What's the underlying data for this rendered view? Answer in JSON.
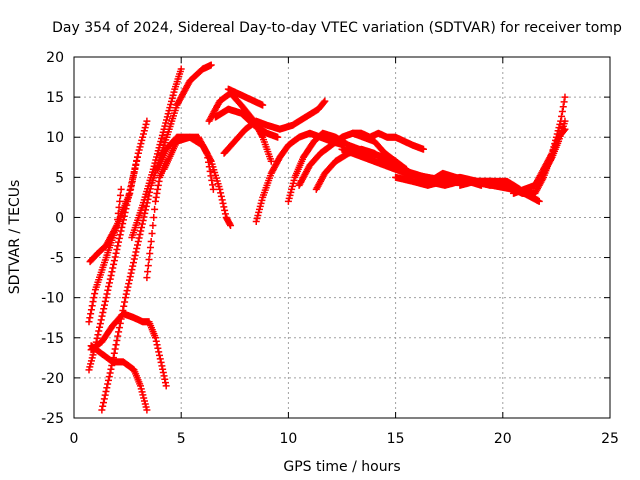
{
  "chart_data": {
    "type": "scatter",
    "title": "Day 354 of 2024, Sidereal Day-to-day VTEC variation (SDTVAR) for receiver tomp",
    "xlabel": "GPS time / hours",
    "ylabel": "SDTVAR / TECUs",
    "xlim": [
      0,
      25
    ],
    "ylim": [
      -25,
      20
    ],
    "xticks": [
      0,
      5,
      10,
      15,
      20,
      25
    ],
    "yticks": [
      -25,
      -20,
      -15,
      -10,
      -5,
      0,
      5,
      10,
      15,
      20
    ],
    "grid": true,
    "marker": "+",
    "color": "#ff0000",
    "series": [
      {
        "name": "s1",
        "x": [
          0.75,
          1.1,
          1.5,
          2.0,
          2.2
        ],
        "y": [
          -5.5,
          -4.5,
          -3.5,
          -1.0,
          3.5
        ]
      },
      {
        "name": "s2",
        "x": [
          0.7,
          1.0,
          1.5,
          2.0,
          2.6,
          3.0
        ],
        "y": [
          -13,
          -9.0,
          -5.0,
          -1.0,
          3.0,
          8.0
        ]
      },
      {
        "name": "s3",
        "x": [
          0.7,
          1.0,
          1.5,
          2.0,
          2.5,
          3.0,
          3.4
        ],
        "y": [
          -19,
          -16,
          -10,
          -4,
          2,
          8,
          12
        ]
      },
      {
        "name": "s4",
        "x": [
          1.3,
          1.8,
          2.4,
          3.0,
          3.6,
          4.2,
          4.8,
          5.4,
          6.0,
          6.4
        ],
        "y": [
          -24,
          -18,
          -10,
          -3,
          4,
          9,
          14,
          17,
          18.5,
          19
        ]
      },
      {
        "name": "s5",
        "x": [
          2.7,
          3.2,
          3.7,
          4.2,
          4.7,
          5.0
        ],
        "y": [
          -2.5,
          1.5,
          6.0,
          11.0,
          16.0,
          18.5
        ]
      },
      {
        "name": "s6",
        "x": [
          3.4,
          3.6,
          3.8,
          4.0,
          4.3
        ],
        "y": [
          -7.5,
          -3.0,
          2.0,
          5.0,
          7.0
        ]
      },
      {
        "name": "s7",
        "x": [
          0.8,
          1.3,
          1.8,
          2.3,
          2.8,
          3.2,
          3.5,
          3.8,
          4.1,
          4.3
        ],
        "y": [
          -16.5,
          -15.5,
          -13.5,
          -12.0,
          -12.5,
          -13.0,
          -13.0,
          -15.0,
          -18.5,
          -21.0
        ]
      },
      {
        "name": "s8",
        "x": [
          0.8,
          1.3,
          1.8,
          2.3,
          2.8,
          3.1,
          3.4
        ],
        "y": [
          -16.0,
          -17.0,
          -18.0,
          -18.0,
          -19.0,
          -21.0,
          -24.0
        ]
      },
      {
        "name": "s9",
        "x": [
          3.9,
          4.3,
          4.8,
          5.4,
          6.0,
          6.4,
          6.8,
          7.1,
          7.3
        ],
        "y": [
          6.0,
          8.5,
          10.0,
          10.0,
          9.0,
          7.0,
          3.5,
          0.0,
          -1.0
        ]
      },
      {
        "name": "s10",
        "x": [
          4.2,
          4.8,
          5.4,
          5.8,
          6.2,
          6.5
        ],
        "y": [
          6.0,
          9.5,
          10.0,
          10.0,
          8.0,
          3.5
        ]
      },
      {
        "name": "s11",
        "x": [
          6.3,
          6.8,
          7.3,
          7.8,
          8.4,
          8.8,
          9.2
        ],
        "y": [
          12.0,
          14.5,
          15.5,
          14.0,
          12.0,
          10.0,
          7.0
        ]
      },
      {
        "name": "s12",
        "x": [
          6.6,
          7.2,
          7.8,
          8.4,
          9.0,
          9.5
        ],
        "y": [
          12.5,
          13.5,
          13.0,
          11.5,
          10.5,
          10.0
        ]
      },
      {
        "name": "s13",
        "x": [
          7.2,
          7.6,
          8.0,
          8.4,
          8.8
        ],
        "y": [
          16.0,
          15.5,
          15.0,
          14.5,
          14.0
        ]
      },
      {
        "name": "s14",
        "x": [
          7.0,
          7.5,
          8.0,
          8.5,
          9.0,
          9.6,
          10.2,
          10.8,
          11.4,
          11.7
        ],
        "y": [
          8.0,
          9.5,
          11.0,
          12.0,
          11.5,
          11.0,
          11.5,
          12.5,
          13.5,
          14.5
        ]
      },
      {
        "name": "s15",
        "x": [
          8.5,
          8.8,
          9.2,
          9.6,
          10.0,
          10.5,
          11.0,
          11.5,
          12.0,
          12.6
        ],
        "y": [
          -0.5,
          2.5,
          5.5,
          7.5,
          9.0,
          10.0,
          10.5,
          10.0,
          9.5,
          9.0
        ]
      },
      {
        "name": "s16",
        "x": [
          10.0,
          10.3,
          10.7,
          11.2,
          11.6,
          12.2,
          12.8,
          13.3,
          13.8,
          14.5,
          15.0
        ],
        "y": [
          2.0,
          5.0,
          7.5,
          9.5,
          10.5,
          10.0,
          9.0,
          8.5,
          8.0,
          7.5,
          7.0
        ]
      },
      {
        "name": "s17",
        "x": [
          10.5,
          11.0,
          11.5,
          12.0,
          12.5,
          13.0,
          13.5,
          14.0,
          14.5,
          15.0,
          15.5
        ],
        "y": [
          4.0,
          6.5,
          8.0,
          9.0,
          10.0,
          10.5,
          10.0,
          9.5,
          8.0,
          7.0,
          6.0
        ]
      },
      {
        "name": "s18",
        "x": [
          11.3,
          11.7,
          12.2,
          12.8,
          13.4,
          14.0,
          14.6,
          15.2,
          15.8,
          16.4
        ],
        "y": [
          3.5,
          5.5,
          7.0,
          8.0,
          8.5,
          8.0,
          7.0,
          6.0,
          5.5,
          5.0
        ]
      },
      {
        "name": "s19",
        "x": [
          13.0,
          13.4,
          13.8,
          14.2,
          14.6,
          15.0,
          15.4,
          15.8,
          16.3
        ],
        "y": [
          10.5,
          10.5,
          10.0,
          10.5,
          10.0,
          10.0,
          9.5,
          9.0,
          8.5
        ]
      },
      {
        "name": "s20",
        "x": [
          12.5,
          13.5,
          14.5,
          15.5,
          16.5,
          17.5,
          18.5,
          19.5,
          20.5,
          21.5
        ],
        "y": [
          8.5,
          7.5,
          6.5,
          5.5,
          5.0,
          4.5,
          4.5,
          4.0,
          3.5,
          2.5
        ]
      },
      {
        "name": "s21",
        "x": [
          15.0,
          15.8,
          16.5,
          17.2,
          18.0,
          18.8,
          19.5,
          20.2,
          21.0,
          21.7
        ],
        "y": [
          5.0,
          4.5,
          4.0,
          4.5,
          5.0,
          4.5,
          4.5,
          4.0,
          3.0,
          2.0
        ]
      },
      {
        "name": "s22",
        "x": [
          16.0,
          16.6,
          17.2,
          17.8,
          18.4,
          19.0
        ],
        "y": [
          5.0,
          4.5,
          5.5,
          5.0,
          4.5,
          4.0
        ]
      },
      {
        "name": "s23",
        "x": [
          16.5,
          17.3,
          18.0,
          18.8,
          19.6,
          20.2,
          20.8
        ],
        "y": [
          4.5,
          4.0,
          4.5,
          4.5,
          4.5,
          4.5,
          3.5
        ]
      },
      {
        "name": "s24",
        "x": [
          18.0,
          18.7,
          19.4,
          20.0,
          20.5,
          21.0
        ],
        "y": [
          4.0,
          4.5,
          4.0,
          4.5,
          4.0,
          3.0
        ]
      },
      {
        "name": "s25",
        "x": [
          19.5,
          20.2,
          20.9,
          21.5,
          21.9,
          22.3,
          22.7,
          22.9
        ],
        "y": [
          4.5,
          4.0,
          3.0,
          3.0,
          5.0,
          8.0,
          12.0,
          15.0
        ]
      },
      {
        "name": "s26",
        "x": [
          20.5,
          21.0,
          21.5,
          21.9,
          22.3,
          22.6,
          22.9
        ],
        "y": [
          3.0,
          3.5,
          4.0,
          5.5,
          7.5,
          9.5,
          12.0
        ]
      },
      {
        "name": "s27",
        "x": [
          21.5,
          21.9,
          22.3,
          22.6,
          22.9
        ],
        "y": [
          4.0,
          6.0,
          8.0,
          10.0,
          11.0
        ]
      }
    ]
  }
}
